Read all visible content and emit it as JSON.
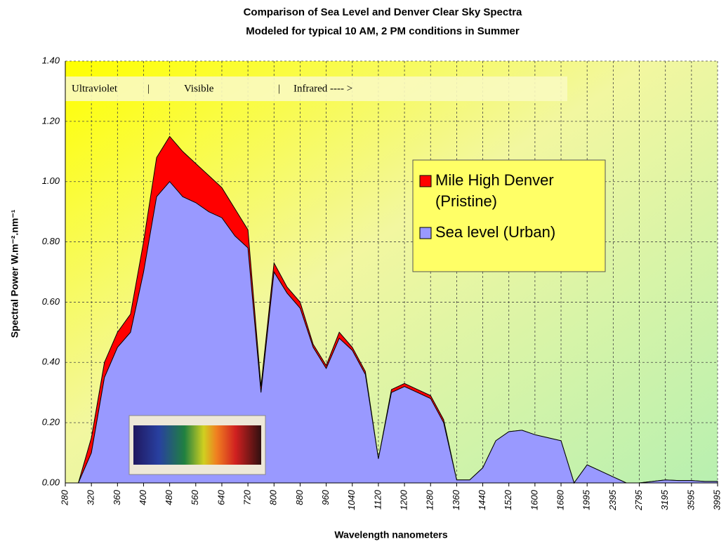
{
  "chart_data": {
    "type": "area",
    "title": "Comparison of Sea Level and Denver Clear Sky Spectra",
    "subtitle": "Modeled for typical 10 AM, 2 PM conditions in Summer",
    "x_label": "Wavelength nanometers",
    "y_label": "Spectral Power W.m⁻².nm⁻¹",
    "annotations": [
      "Ultraviolet",
      "|",
      "Visible",
      "|",
      "Infrared ---- >"
    ],
    "categories": [
      "280",
      null,
      "320",
      null,
      "360",
      null,
      "400",
      null,
      "480",
      null,
      "560",
      null,
      "640",
      null,
      "720",
      null,
      "800",
      null,
      "880",
      null,
      "960",
      null,
      "1040",
      null,
      "1120",
      null,
      "1200",
      null,
      "1280",
      null,
      "1360",
      null,
      "1440",
      null,
      "1520",
      null,
      "1600",
      null,
      "1680",
      null,
      "1995",
      null,
      "2395",
      null,
      "2795",
      null,
      "3195",
      null,
      "3595",
      null,
      "3995"
    ],
    "series": [
      {
        "name": "Mile High Denver (Pristine)",
        "color": "#ff0000",
        "values": [
          0,
          0,
          0.15,
          0.4,
          0.5,
          0.56,
          0.8,
          1.08,
          1.15,
          1.1,
          1.06,
          1.02,
          0.98,
          0.91,
          0.84,
          0.32,
          0.73,
          0.65,
          0.6,
          0.46,
          0.39,
          0.5,
          0.45,
          0.37,
          0.08,
          0.31,
          0.33,
          0.31,
          0.29,
          0.21,
          0.01,
          0.01,
          0.05,
          0.14,
          0.17,
          0.175,
          0.16,
          0.15,
          0.14,
          0,
          0.06,
          0.04,
          0.02,
          0,
          0,
          0.005,
          0.01,
          0.008,
          0.008,
          0.005,
          0.005
        ]
      },
      {
        "name": "Sea level (Urban)",
        "color": "#9999ff",
        "values": [
          0,
          0,
          0.1,
          0.35,
          0.45,
          0.5,
          0.7,
          0.95,
          1.0,
          0.95,
          0.93,
          0.9,
          0.88,
          0.82,
          0.78,
          0.3,
          0.7,
          0.63,
          0.58,
          0.45,
          0.38,
          0.48,
          0.44,
          0.36,
          0.08,
          0.3,
          0.32,
          0.3,
          0.28,
          0.2,
          0.01,
          0.01,
          0.05,
          0.14,
          0.17,
          0.175,
          0.16,
          0.15,
          0.14,
          0,
          0.06,
          0.04,
          0.02,
          0,
          0,
          0.005,
          0.01,
          0.008,
          0.008,
          0.005,
          0.005
        ]
      }
    ],
    "ylim": [
      0,
      1.4
    ],
    "yticks": [
      {
        "value": 0,
        "label": "0.00"
      },
      {
        "value": 0.2,
        "label": "0.20"
      },
      {
        "value": 0.4,
        "label": "0.40"
      },
      {
        "value": 0.6,
        "label": "0.60"
      },
      {
        "value": 0.8,
        "label": "0.80"
      },
      {
        "value": 1,
        "label": "1.00"
      },
      {
        "value": 1.2,
        "label": "1.20"
      },
      {
        "value": 1.4,
        "label": "1.40"
      }
    ],
    "grid": true
  }
}
